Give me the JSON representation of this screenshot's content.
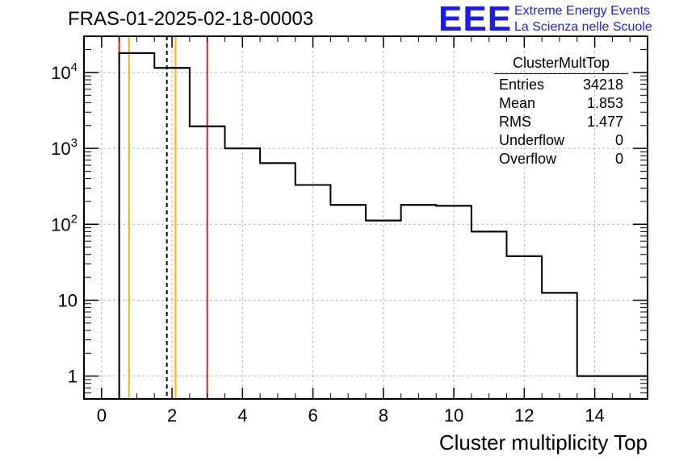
{
  "chart_data": {
    "type": "histogram",
    "title": "FRAS-01-2025-02-18-00003",
    "xlabel": "Cluster multiplicity Top",
    "ylabel": "",
    "yscale": "log",
    "xlim": [
      -0.5,
      15.5
    ],
    "ylim": [
      0.5,
      30000
    ],
    "grid": true,
    "bins": [
      {
        "low": 0.5,
        "high": 1.5,
        "value": 18000
      },
      {
        "low": 1.5,
        "high": 2.5,
        "value": 11500
      },
      {
        "low": 2.5,
        "high": 3.5,
        "value": 1950
      },
      {
        "low": 3.5,
        "high": 4.5,
        "value": 1000
      },
      {
        "low": 4.5,
        "high": 5.5,
        "value": 640
      },
      {
        "low": 5.5,
        "high": 6.5,
        "value": 330
      },
      {
        "low": 6.5,
        "high": 7.5,
        "value": 180
      },
      {
        "low": 7.5,
        "high": 8.5,
        "value": 112
      },
      {
        "low": 8.5,
        "high": 9.5,
        "value": 180
      },
      {
        "low": 9.5,
        "high": 10.5,
        "value": 175
      },
      {
        "low": 10.5,
        "high": 11.5,
        "value": 80
      },
      {
        "low": 11.5,
        "high": 12.5,
        "value": 38
      },
      {
        "low": 12.5,
        "high": 13.5,
        "value": 12.5
      },
      {
        "low": 13.5,
        "high": 15.5,
        "value": 1
      }
    ],
    "x_ticks": [
      0,
      2,
      4,
      6,
      8,
      10,
      12,
      14
    ],
    "x_tick_labels": [
      "0",
      "2",
      "4",
      "6",
      "8",
      "10",
      "12",
      "14"
    ],
    "y_ticks": [
      1,
      10,
      100,
      1000,
      10000
    ],
    "y_tick_labels": [
      {
        "base": "1",
        "exp": ""
      },
      {
        "base": "10",
        "exp": ""
      },
      {
        "base": "10",
        "exp": "2"
      },
      {
        "base": "10",
        "exp": "3"
      },
      {
        "base": "10",
        "exp": "4"
      }
    ],
    "vertical_lines": [
      {
        "x": 0.5,
        "color": "#e41a1a",
        "style": "solid"
      },
      {
        "x": 0.78,
        "color": "#f5b800",
        "style": "solid"
      },
      {
        "x": 1.853,
        "color": "#000000",
        "style": "dashed"
      },
      {
        "x": 2.1,
        "color": "#f5b800",
        "style": "solid"
      },
      {
        "x": 3.0,
        "color": "#e41a1a",
        "style": "solid"
      }
    ]
  },
  "stats_box": {
    "title": "ClusterMultTop",
    "rows": [
      {
        "label": "Entries",
        "value": "34218"
      },
      {
        "label": "Mean",
        "value": "1.853"
      },
      {
        "label": "RMS",
        "value": "1.477"
      },
      {
        "label": "Underflow",
        "value": "0"
      },
      {
        "label": "Overflow",
        "value": "0"
      }
    ]
  },
  "logo": {
    "text": "EEE",
    "line1": "Extreme Energy Events",
    "line2": "La Scienza nelle Scuole",
    "color": "#1c1cf0"
  }
}
